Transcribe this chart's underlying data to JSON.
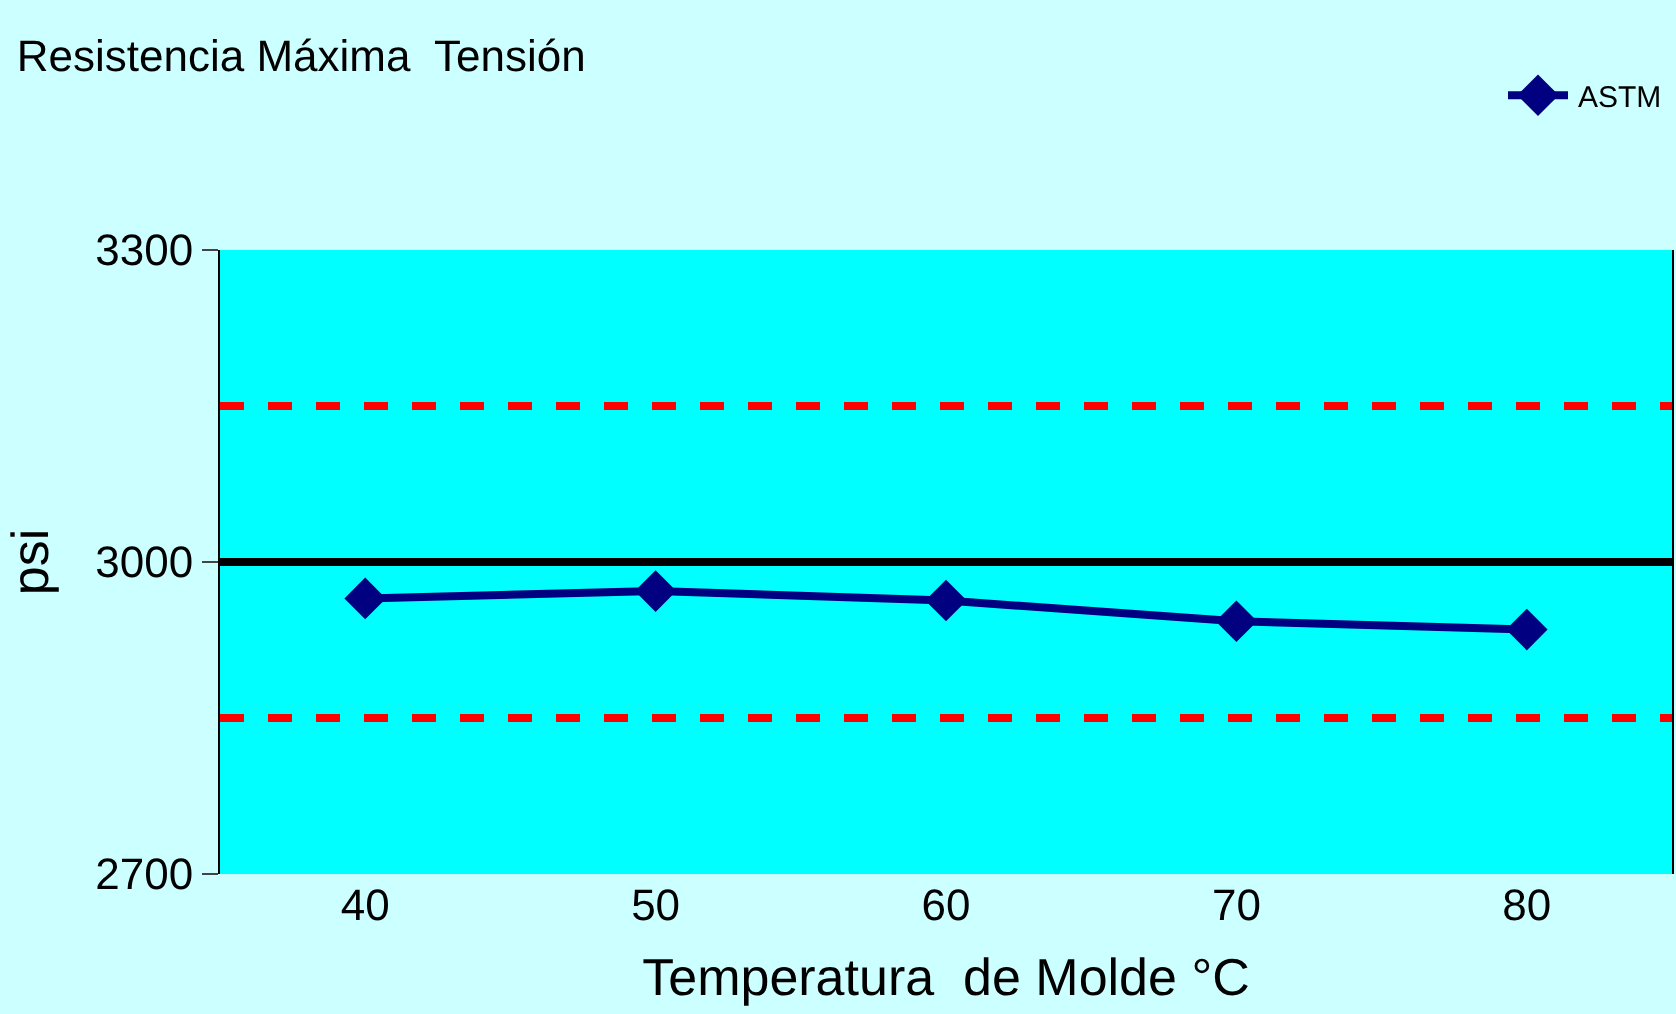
{
  "chart_data": {
    "type": "line",
    "title": "Resistencia Máxima  Tensión",
    "xlabel": "Temperatura  de Molde °C",
    "ylabel": "psi",
    "categories": [
      "40",
      "50",
      "60",
      "70",
      "80"
    ],
    "series": [
      {
        "name": "ASTM",
        "color": "#000080",
        "values": [
          2965,
          2972,
          2963,
          2943,
          2935
        ]
      }
    ],
    "ylim": [
      2700,
      3300
    ],
    "yticks": [
      2700,
      3000,
      3300
    ],
    "grid": false,
    "legend": "top right",
    "marker": "diamond",
    "line_style": "solid",
    "ref_lines": [
      {
        "axis": "y",
        "value": 3150,
        "color": "#ff0000",
        "line_style": "dashed"
      },
      {
        "axis": "y",
        "value": 2850,
        "color": "#ff0000",
        "line_style": "dashed"
      },
      {
        "axis": "y",
        "value": 3000,
        "color": "#000000",
        "line_style": "solid"
      }
    ]
  }
}
